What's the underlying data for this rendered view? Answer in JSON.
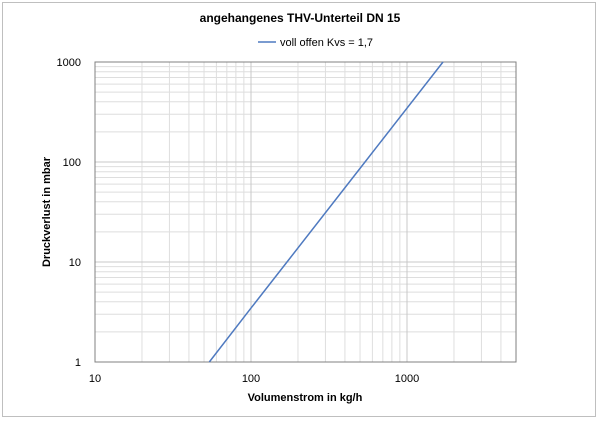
{
  "chart_data": {
    "type": "line",
    "title": "angehangenes THV-Unterteil DN 15",
    "xlabel": "Volumenstrom in kg/h",
    "ylabel": "Druckverlust in mbar",
    "xscale": "log",
    "yscale": "log",
    "xlim": [
      10,
      5000
    ],
    "ylim": [
      1,
      1000
    ],
    "x_ticks": [
      "10",
      "100",
      "1000"
    ],
    "y_ticks": [
      "1",
      "10",
      "100",
      "1000"
    ],
    "grid": true,
    "legend": "top-center",
    "series": [
      {
        "name": "voll offen Kvs = 1,7",
        "color": "#4f7ac0",
        "x": [
          54,
          100,
          170,
          538,
          1700
        ],
        "y": [
          1,
          3.46,
          10,
          100,
          1000
        ]
      }
    ]
  }
}
